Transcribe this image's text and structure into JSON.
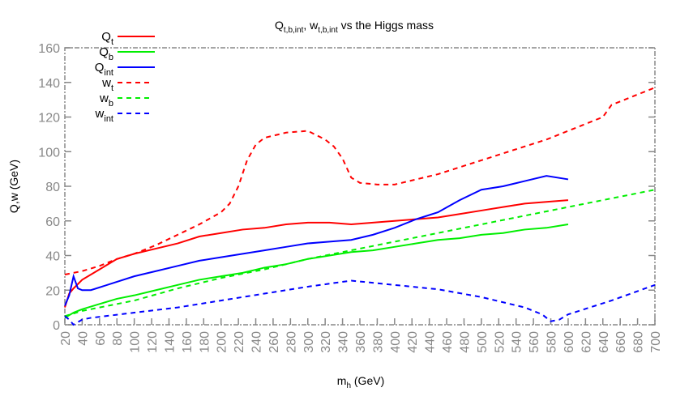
{
  "chart_data": {
    "type": "line",
    "title": {
      "base1": "Q",
      "sub1": "t,b,int",
      "sep": ", ",
      "base2": "w",
      "sub2": "t,b,int",
      "rest": " vs the Higgs mass"
    },
    "xlabel": {
      "base": "m",
      "sub": "h",
      "rest": " (GeV)"
    },
    "ylabel": "Q,w (GeV)",
    "xlim": [
      20,
      700
    ],
    "ylim": [
      0,
      160
    ],
    "xticks": [
      20,
      40,
      60,
      80,
      100,
      120,
      140,
      160,
      180,
      200,
      220,
      240,
      260,
      280,
      300,
      320,
      340,
      360,
      380,
      400,
      420,
      440,
      460,
      480,
      500,
      520,
      540,
      560,
      580,
      600,
      620,
      640,
      660,
      680,
      700
    ],
    "yticks": [
      0,
      20,
      40,
      60,
      80,
      100,
      120,
      140,
      160
    ],
    "grid": false,
    "legend_position": "top-left",
    "series": [
      {
        "name": "Q",
        "sub": "t",
        "color": "#ff0000",
        "dash": false,
        "x": [
          20,
          25,
          30,
          40,
          60,
          80,
          100,
          125,
          150,
          175,
          200,
          225,
          250,
          275,
          300,
          325,
          350,
          375,
          400,
          425,
          450,
          475,
          500,
          525,
          550,
          575,
          600
        ],
        "y": [
          10,
          18,
          21,
          26,
          32,
          38,
          41,
          44,
          47,
          51,
          53,
          55,
          56,
          58,
          59,
          59,
          58,
          59,
          60,
          61,
          62,
          64,
          66,
          68,
          70,
          71,
          72
        ]
      },
      {
        "name": "Q",
        "sub": "b",
        "color": "#00ee00",
        "dash": false,
        "x": [
          20,
          30,
          40,
          60,
          80,
          100,
          125,
          150,
          175,
          200,
          225,
          250,
          275,
          300,
          325,
          350,
          375,
          400,
          425,
          450,
          475,
          500,
          525,
          550,
          575,
          600
        ],
        "y": [
          4,
          7,
          9,
          12,
          15,
          17,
          20,
          23,
          26,
          28,
          30,
          33,
          35,
          38,
          40,
          42,
          43,
          45,
          47,
          49,
          50,
          52,
          53,
          55,
          56,
          58
        ]
      },
      {
        "name": "Q",
        "sub": "int",
        "color": "#0000ff",
        "dash": false,
        "x": [
          20,
          25,
          30,
          35,
          40,
          50,
          75,
          100,
          125,
          150,
          175,
          200,
          225,
          250,
          275,
          300,
          325,
          350,
          375,
          400,
          425,
          450,
          475,
          500,
          525,
          550,
          575,
          600
        ],
        "y": [
          11,
          17,
          28,
          21,
          20,
          20,
          24,
          28,
          31,
          34,
          37,
          39,
          41,
          43,
          45,
          47,
          48,
          49,
          52,
          56,
          61,
          65,
          72,
          78,
          80,
          83,
          86,
          84
        ]
      },
      {
        "name": "w",
        "sub": "t",
        "color": "#ff0000",
        "dash": true,
        "x": [
          20,
          40,
          60,
          80,
          100,
          125,
          150,
          175,
          200,
          210,
          220,
          230,
          240,
          250,
          275,
          300,
          320,
          330,
          340,
          350,
          360,
          380,
          400,
          425,
          450,
          475,
          500,
          525,
          550,
          575,
          600,
          625,
          640,
          650,
          675,
          700
        ],
        "y": [
          29,
          31,
          34,
          38,
          41,
          46,
          52,
          58,
          65,
          70,
          80,
          95,
          104,
          108,
          111,
          112,
          107,
          103,
          96,
          85,
          82,
          81,
          81,
          84,
          87,
          91,
          95,
          99,
          103,
          107,
          112,
          117,
          120,
          127,
          132,
          137
        ]
      },
      {
        "name": "w",
        "sub": "b",
        "color": "#00ee00",
        "dash": true,
        "x": [
          20,
          40,
          60,
          100,
          150,
          200,
          250,
          300,
          350,
          400,
          450,
          500,
          550,
          600,
          650,
          700
        ],
        "y": [
          5,
          8,
          10,
          14,
          21,
          27,
          32,
          38,
          43,
          48,
          53,
          58,
          63,
          68,
          73,
          78
        ]
      },
      {
        "name": "w",
        "sub": "int",
        "color": "#0000ff",
        "dash": true,
        "x": [
          20,
          25,
          30,
          40,
          50,
          100,
          150,
          200,
          250,
          300,
          350,
          400,
          450,
          500,
          550,
          570,
          580,
          590,
          600,
          650,
          700
        ],
        "y": [
          5,
          3,
          0,
          3,
          4,
          7,
          10,
          14,
          18,
          22,
          25.5,
          23,
          20.5,
          16,
          10,
          6,
          2,
          3,
          6,
          14,
          23
        ]
      }
    ]
  }
}
